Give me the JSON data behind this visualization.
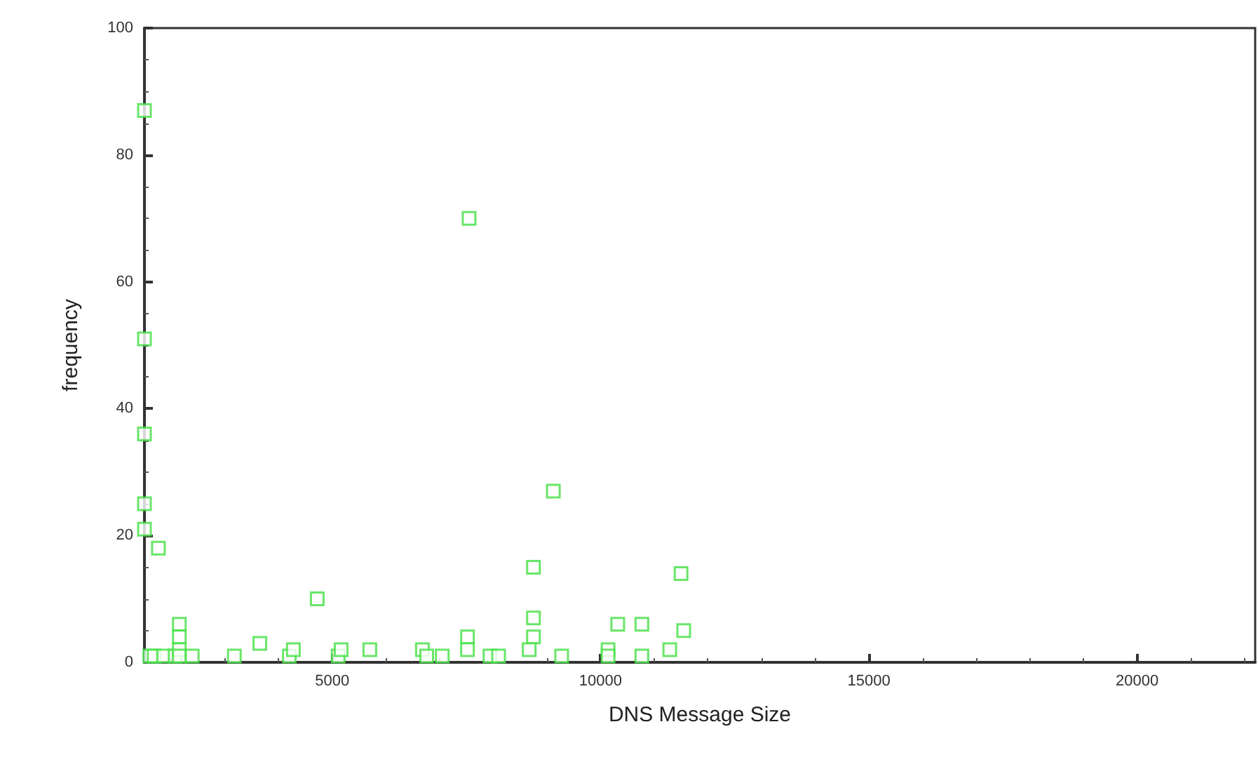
{
  "chart_data": {
    "type": "scatter",
    "xlabel": "DNS Message Size",
    "ylabel": "frequency",
    "x": [
      1500,
      1500,
      1500,
      1500,
      1500,
      1760,
      1600,
      1680,
      1860,
      2070,
      2150,
      2150,
      2150,
      2150,
      2390,
      3175,
      3650,
      4200,
      4275,
      4720,
      5110,
      5165,
      5700,
      6680,
      6760,
      7050,
      7550,
      7520,
      7520,
      7940,
      8100,
      8750,
      8750,
      8750,
      8670,
      9120,
      9275,
      10140,
      10140,
      10320,
      10770,
      10770,
      11290,
      11500,
      11550
    ],
    "values": [
      87,
      51,
      36,
      25,
      21,
      18,
      1,
      1,
      1,
      1,
      6,
      4,
      2,
      1,
      1,
      1,
      3,
      1,
      2,
      10,
      1,
      2,
      2,
      2,
      1,
      1,
      70,
      4,
      2,
      1,
      1,
      15,
      7,
      4,
      2,
      27,
      1,
      2,
      1,
      6,
      6,
      1,
      2,
      14,
      5
    ],
    "color": "#44e044",
    "marker": "square",
    "xlim": [
      1500,
      22200
    ],
    "xticks": [
      5000,
      10000,
      15000,
      20000
    ],
    "ylim": [
      0,
      100
    ],
    "yticks": [
      0,
      20,
      40,
      60,
      80,
      100
    ],
    "grid": false
  }
}
